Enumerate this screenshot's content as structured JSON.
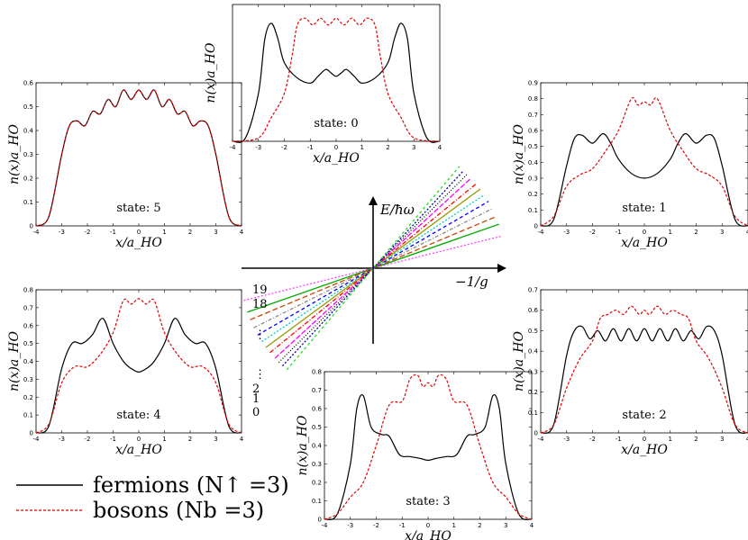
{
  "chart_data": [
    {
      "type": "line",
      "state_label": "state: 0",
      "xlabel": "x/a_HO",
      "ylabel": "n(x)a_HO",
      "xlim": [
        -4,
        4
      ],
      "ylim": [
        0,
        0.8
      ],
      "xticks": [
        "-4",
        "-3",
        "-2",
        "-1",
        "0",
        "1",
        "2",
        "3",
        "4"
      ],
      "yticks": [],
      "series": [
        {
          "color": "#000000",
          "dash": "",
          "x": [
            -4,
            -3.5,
            -3,
            -2.75,
            -2.5,
            -2.25,
            -2,
            -1.5,
            -1,
            -0.7,
            -0.4,
            -0.2,
            0,
            0.2,
            0.4,
            0.7,
            1,
            1.5,
            2,
            2.25,
            2.5,
            2.75,
            3,
            3.5,
            4
          ],
          "y": [
            0,
            0.02,
            0.28,
            0.6,
            0.69,
            0.6,
            0.46,
            0.37,
            0.34,
            0.38,
            0.42,
            0.4,
            0.38,
            0.4,
            0.42,
            0.38,
            0.34,
            0.37,
            0.46,
            0.6,
            0.69,
            0.6,
            0.28,
            0.02,
            0
          ]
        },
        {
          "color": "#e00000",
          "dash": "3,2",
          "x": [
            -4,
            -3,
            -2.5,
            -2,
            -1.7,
            -1.5,
            -1.2,
            -0.9,
            -0.6,
            -0.3,
            0,
            0.3,
            0.6,
            0.9,
            1.2,
            1.5,
            1.7,
            2,
            2.5,
            3,
            4
          ],
          "y": [
            0,
            0.02,
            0.14,
            0.28,
            0.5,
            0.68,
            0.72,
            0.68,
            0.72,
            0.68,
            0.72,
            0.68,
            0.72,
            0.68,
            0.72,
            0.68,
            0.5,
            0.28,
            0.14,
            0.02,
            0
          ]
        }
      ]
    },
    {
      "type": "line",
      "state_label": "state: 1",
      "xlabel": "x/a_HO",
      "ylabel": "n(x)a_HO",
      "xlim": [
        -4,
        4
      ],
      "ylim": [
        0,
        0.9
      ],
      "xticks": [
        "-4",
        "-3",
        "-2",
        "-1",
        "0",
        "1",
        "2",
        "3",
        "4"
      ],
      "yticks": [
        "0",
        "0.1",
        "0.2",
        "0.3",
        "0.4",
        "0.5",
        "0.6",
        "0.7",
        "0.8",
        "0.9"
      ],
      "series": [
        {
          "color": "#000000",
          "dash": "",
          "x": [
            -4,
            -3.5,
            -3,
            -2.7,
            -2.4,
            -2,
            -1.6,
            -1.3,
            -1,
            -0.5,
            0,
            0.5,
            1,
            1.3,
            1.6,
            2,
            2.4,
            2.7,
            3,
            3.5,
            4
          ],
          "y": [
            0,
            0.04,
            0.38,
            0.55,
            0.57,
            0.52,
            0.58,
            0.52,
            0.42,
            0.33,
            0.3,
            0.33,
            0.42,
            0.52,
            0.58,
            0.52,
            0.57,
            0.55,
            0.38,
            0.04,
            0
          ]
        },
        {
          "color": "#e00000",
          "dash": "3,2",
          "x": [
            -4,
            -3.5,
            -3,
            -2.5,
            -2,
            -1.5,
            -1,
            -0.5,
            -0.25,
            0,
            0.25,
            0.5,
            1,
            1.5,
            2,
            2.5,
            3,
            3.5,
            4
          ],
          "y": [
            0,
            0.06,
            0.25,
            0.32,
            0.36,
            0.47,
            0.6,
            0.8,
            0.76,
            0.78,
            0.76,
            0.8,
            0.6,
            0.47,
            0.36,
            0.32,
            0.25,
            0.06,
            0
          ]
        }
      ]
    },
    {
      "type": "line",
      "state_label": "state: 2",
      "xlabel": "x/a_HO",
      "ylabel": "n(x)a_HO",
      "xlim": [
        -4,
        4
      ],
      "ylim": [
        0,
        0.7
      ],
      "xticks": [
        "-4",
        "-3",
        "-2",
        "-1",
        "0",
        "1",
        "2",
        "3",
        "4"
      ],
      "yticks": [
        "0",
        "0.1",
        "0.2",
        "0.3",
        "0.4",
        "0.5",
        "0.6",
        "0.7"
      ],
      "series": [
        {
          "color": "#000000",
          "dash": "",
          "x": [
            -4,
            -3.5,
            -3,
            -2.7,
            -2.4,
            -2.1,
            -1.8,
            -1.5,
            -1.2,
            -0.9,
            -0.6,
            -0.3,
            0,
            0.3,
            0.6,
            0.9,
            1.2,
            1.5,
            1.8,
            2.1,
            2.4,
            2.7,
            3,
            3.5,
            4
          ],
          "y": [
            0,
            0.04,
            0.38,
            0.5,
            0.52,
            0.46,
            0.5,
            0.45,
            0.51,
            0.45,
            0.51,
            0.45,
            0.51,
            0.45,
            0.51,
            0.45,
            0.51,
            0.45,
            0.5,
            0.46,
            0.52,
            0.5,
            0.38,
            0.04,
            0
          ]
        },
        {
          "color": "#e00000",
          "dash": "3,2",
          "x": [
            -4,
            -3.5,
            -3,
            -2.5,
            -2,
            -1.7,
            -1.4,
            -1.1,
            -0.8,
            -0.5,
            -0.2,
            0,
            0.2,
            0.5,
            0.8,
            1.1,
            1.4,
            1.7,
            2,
            2.5,
            3,
            3.5,
            4
          ],
          "y": [
            0,
            0.04,
            0.22,
            0.36,
            0.45,
            0.56,
            0.58,
            0.6,
            0.58,
            0.62,
            0.58,
            0.6,
            0.58,
            0.62,
            0.58,
            0.6,
            0.58,
            0.56,
            0.45,
            0.36,
            0.22,
            0.04,
            0
          ]
        }
      ]
    },
    {
      "type": "line",
      "state_label": "state: 3",
      "xlabel": "x/a_HO",
      "ylabel": "n(x)a_HO",
      "xlim": [
        -4,
        4
      ],
      "ylim": [
        0,
        0.8
      ],
      "xticks": [
        "-4",
        "-3",
        "-2",
        "-1",
        "0",
        "1",
        "2",
        "3",
        "4"
      ],
      "yticks": [
        "0",
        "0.1",
        "0.2",
        "0.3",
        "0.4",
        "0.5",
        "0.6",
        "0.7",
        "0.8"
      ],
      "series": [
        {
          "color": "#000000",
          "dash": "",
          "x": [
            -4,
            -3.5,
            -3,
            -2.75,
            -2.5,
            -2.2,
            -1.8,
            -1.5,
            -1.1,
            -0.7,
            -0.3,
            0,
            0.3,
            0.7,
            1.1,
            1.5,
            1.8,
            2.2,
            2.5,
            2.75,
            3,
            3.5,
            4
          ],
          "y": [
            0,
            0.03,
            0.3,
            0.6,
            0.67,
            0.5,
            0.46,
            0.45,
            0.35,
            0.34,
            0.33,
            0.32,
            0.33,
            0.34,
            0.35,
            0.45,
            0.46,
            0.5,
            0.67,
            0.6,
            0.3,
            0.03,
            0
          ]
        },
        {
          "color": "#e00000",
          "dash": "3,2",
          "x": [
            -4,
            -3.5,
            -3,
            -2.5,
            -2,
            -1.5,
            -1,
            -0.7,
            -0.4,
            -0.2,
            0,
            0.2,
            0.4,
            0.7,
            1,
            1.5,
            2,
            2.5,
            3,
            3.5,
            4
          ],
          "y": [
            0,
            0.03,
            0.12,
            0.2,
            0.4,
            0.62,
            0.64,
            0.76,
            0.78,
            0.72,
            0.74,
            0.72,
            0.78,
            0.76,
            0.64,
            0.62,
            0.4,
            0.2,
            0.12,
            0.03,
            0
          ]
        }
      ]
    },
    {
      "type": "line",
      "state_label": "state: 4",
      "xlabel": "x/a_HO",
      "ylabel": "n(x)a_HO",
      "xlim": [
        -4,
        4
      ],
      "ylim": [
        0,
        0.8
      ],
      "xticks": [
        "-4",
        "-3",
        "-2",
        "-1",
        "0",
        "1",
        "2",
        "3",
        "4"
      ],
      "yticks": [
        "0",
        "0.1",
        "0.2",
        "0.3",
        "0.4",
        "0.5",
        "0.6",
        "0.7",
        "0.8"
      ],
      "series": [
        {
          "color": "#000000",
          "dash": "",
          "x": [
            -4,
            -3.5,
            -3,
            -2.6,
            -2.2,
            -1.8,
            -1.4,
            -1,
            -0.6,
            -0.3,
            0,
            0.3,
            0.6,
            1,
            1.4,
            1.8,
            2.2,
            2.6,
            3,
            3.5,
            4
          ],
          "y": [
            0,
            0.04,
            0.36,
            0.5,
            0.5,
            0.55,
            0.64,
            0.5,
            0.4,
            0.36,
            0.34,
            0.36,
            0.4,
            0.5,
            0.64,
            0.55,
            0.5,
            0.5,
            0.36,
            0.04,
            0
          ]
        },
        {
          "color": "#e00000",
          "dash": "3,2",
          "x": [
            -4,
            -3.5,
            -3,
            -2.5,
            -2,
            -1.5,
            -1,
            -0.6,
            -0.3,
            0,
            0.3,
            0.6,
            1,
            1.5,
            2,
            2.5,
            3,
            3.5,
            4
          ],
          "y": [
            0,
            0.05,
            0.28,
            0.37,
            0.37,
            0.44,
            0.56,
            0.74,
            0.72,
            0.75,
            0.72,
            0.74,
            0.56,
            0.44,
            0.37,
            0.37,
            0.28,
            0.05,
            0
          ]
        }
      ]
    },
    {
      "type": "line",
      "state_label": "state: 5",
      "xlabel": "x/a_HO",
      "ylabel": "n(x)a_HO",
      "xlim": [
        -4,
        4
      ],
      "ylim": [
        0,
        0.6
      ],
      "xticks": [
        "-4",
        "-3",
        "-2",
        "-1",
        "0",
        "1",
        "2",
        "3",
        "4"
      ],
      "yticks": [
        "0",
        "0.1",
        "0.2",
        "0.3",
        "0.4",
        "0.5",
        "0.6"
      ],
      "series": [
        {
          "color": "#000000",
          "dash": "",
          "x": [
            -4,
            -3.5,
            -3,
            -2.7,
            -2.4,
            -2.1,
            -1.8,
            -1.5,
            -1.2,
            -0.9,
            -0.6,
            -0.3,
            0,
            0.3,
            0.6,
            0.9,
            1.2,
            1.5,
            1.8,
            2.1,
            2.4,
            2.7,
            3,
            3.5,
            4
          ],
          "y": [
            0,
            0.04,
            0.3,
            0.42,
            0.44,
            0.42,
            0.48,
            0.47,
            0.53,
            0.5,
            0.57,
            0.53,
            0.57,
            0.53,
            0.57,
            0.5,
            0.53,
            0.47,
            0.48,
            0.42,
            0.44,
            0.42,
            0.3,
            0.04,
            0
          ]
        },
        {
          "color": "#e00000",
          "dash": "3,2",
          "x": [
            -4,
            -3.5,
            -3,
            -2.7,
            -2.4,
            -2.1,
            -1.8,
            -1.5,
            -1.2,
            -0.9,
            -0.6,
            -0.3,
            0,
            0.3,
            0.6,
            0.9,
            1.2,
            1.5,
            1.8,
            2.1,
            2.4,
            2.7,
            3,
            3.5,
            4
          ],
          "y": [
            0,
            0.04,
            0.3,
            0.42,
            0.44,
            0.42,
            0.48,
            0.47,
            0.53,
            0.5,
            0.57,
            0.53,
            0.57,
            0.53,
            0.57,
            0.5,
            0.53,
            0.47,
            0.48,
            0.42,
            0.44,
            0.42,
            0.3,
            0.04,
            0
          ]
        }
      ]
    },
    {
      "type": "line",
      "xlabel": "−1/g",
      "ylabel": "E/ħω",
      "level_labels": [
        "19",
        "18",
        "⋮",
        "⋮",
        "2",
        "1",
        "0"
      ],
      "series": [
        {
          "color": "#ff44ff",
          "dash": "2,2",
          "slope": -0.25
        },
        {
          "color": "#00aa00",
          "dash": "",
          "slope": -0.35
        },
        {
          "color": "#cc4400",
          "dash": "6,3",
          "slope": -0.42
        },
        {
          "color": "#888888",
          "dash": "4,2,1,2",
          "slope": -0.5
        },
        {
          "color": "#0000ff",
          "dash": "4,3",
          "slope": -0.58
        },
        {
          "color": "#00cccc",
          "dash": "2,2",
          "slope": -0.66
        },
        {
          "color": "#999900",
          "dash": "",
          "slope": -0.74
        },
        {
          "color": "#ff0000",
          "dash": "5,2,1,2",
          "slope": -0.82
        },
        {
          "color": "#ff00ff",
          "dash": "6,2",
          "slope": -0.92
        },
        {
          "color": "#000000",
          "dash": "1,2",
          "slope": -1.0
        },
        {
          "color": "#0000aa",
          "dash": "2,2",
          "slope": -1.08
        },
        {
          "color": "#22dd22",
          "dash": "3,3",
          "slope": -1.18
        }
      ]
    }
  ],
  "legend": {
    "fermions_label": "fermions (N↑ =3)",
    "bosons_label": "bosons (Nb =3)",
    "fermions_color": "#000000",
    "bosons_color": "#e00000"
  }
}
